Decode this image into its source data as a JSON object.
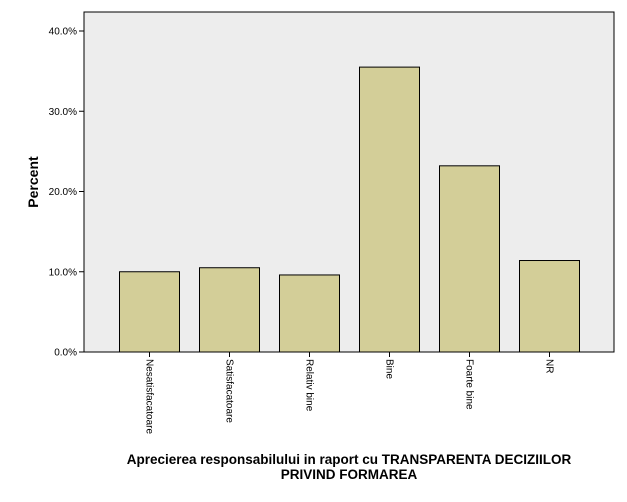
{
  "chart_data": {
    "type": "bar",
    "categories": [
      "Nesatisfacatoare",
      "Satisfacatoare",
      "Relativ bine",
      "Bine",
      "Foarte bine",
      "NR"
    ],
    "values": [
      10.0,
      10.5,
      9.6,
      35.5,
      23.2,
      11.4
    ],
    "xlabel_lines": [
      "Aprecierea responsabilului in raport cu TRANSPARENTA DECIZIILOR",
      "PRIVIND FORMAREA"
    ],
    "ylabel": "Percent",
    "ylim": [
      0,
      42
    ],
    "yticks": [
      0,
      10,
      20,
      30,
      40
    ],
    "ytick_labels": [
      "0.0%",
      "10.0%",
      "20.0%",
      "30.0%",
      "40.0%"
    ],
    "grid": false,
    "legend": "none",
    "colors": {
      "plot_background": "#ededed",
      "bar_fill": "#d3ce98",
      "bar_stroke": "#000000"
    }
  }
}
